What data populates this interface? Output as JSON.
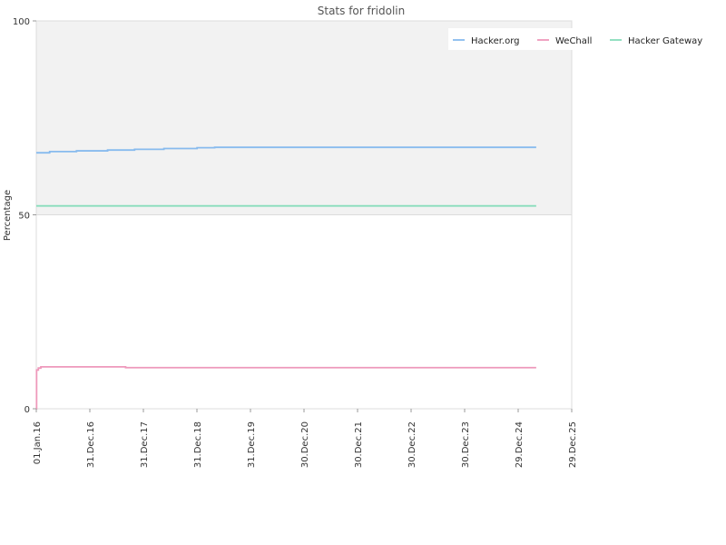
{
  "chart_data": {
    "type": "line",
    "title": "Stats for fridolin",
    "xlabel": "",
    "ylabel": "Percentage",
    "ylim": [
      0,
      100
    ],
    "y_ticks": [
      "0",
      "50",
      "100"
    ],
    "x_tick_labels": [
      "01.Jan.16",
      "31.Dec.16",
      "31.Dec.17",
      "31.Dec.18",
      "31.Dec.19",
      "30.Dec.20",
      "30.Dec.21",
      "30.Dec.22",
      "30.Dec.23",
      "29.Dec.24",
      "29.Dec.25"
    ],
    "x_tick_dates": [
      "2016-01-01",
      "2016-12-31",
      "2017-12-31",
      "2018-12-31",
      "2019-12-31",
      "2020-12-30",
      "2021-12-30",
      "2022-12-30",
      "2023-12-30",
      "2024-12-29",
      "2025-12-29"
    ],
    "xlim": [
      "2016-01-01",
      "2025-12-29"
    ],
    "grid": "horizontal at 50; upper band shaded",
    "legend_position": "top-right",
    "series": [
      {
        "name": "Hacker.org",
        "color": "#88bbee",
        "step": true,
        "points": [
          [
            "2016-01-01",
            66.0
          ],
          [
            "2016-04-01",
            66.3
          ],
          [
            "2016-10-01",
            66.5
          ],
          [
            "2017-05-01",
            66.7
          ],
          [
            "2017-11-01",
            66.9
          ],
          [
            "2018-05-20",
            67.1
          ],
          [
            "2019-01-01",
            67.3
          ],
          [
            "2019-05-01",
            67.4
          ],
          [
            "2025-05-01",
            67.4
          ]
        ]
      },
      {
        "name": "WeChall",
        "color": "#ee99bb",
        "step": true,
        "points": [
          [
            "2016-01-01",
            0
          ],
          [
            "2016-01-03",
            10.0
          ],
          [
            "2016-01-15",
            10.5
          ],
          [
            "2016-02-01",
            10.8
          ],
          [
            "2017-09-01",
            10.6
          ],
          [
            "2025-05-01",
            10.6
          ]
        ]
      },
      {
        "name": "Hacker Gateway",
        "color": "#88ddbb",
        "step": true,
        "points": [
          [
            "2016-01-01",
            52.3
          ],
          [
            "2025-05-01",
            52.3
          ]
        ]
      }
    ]
  }
}
